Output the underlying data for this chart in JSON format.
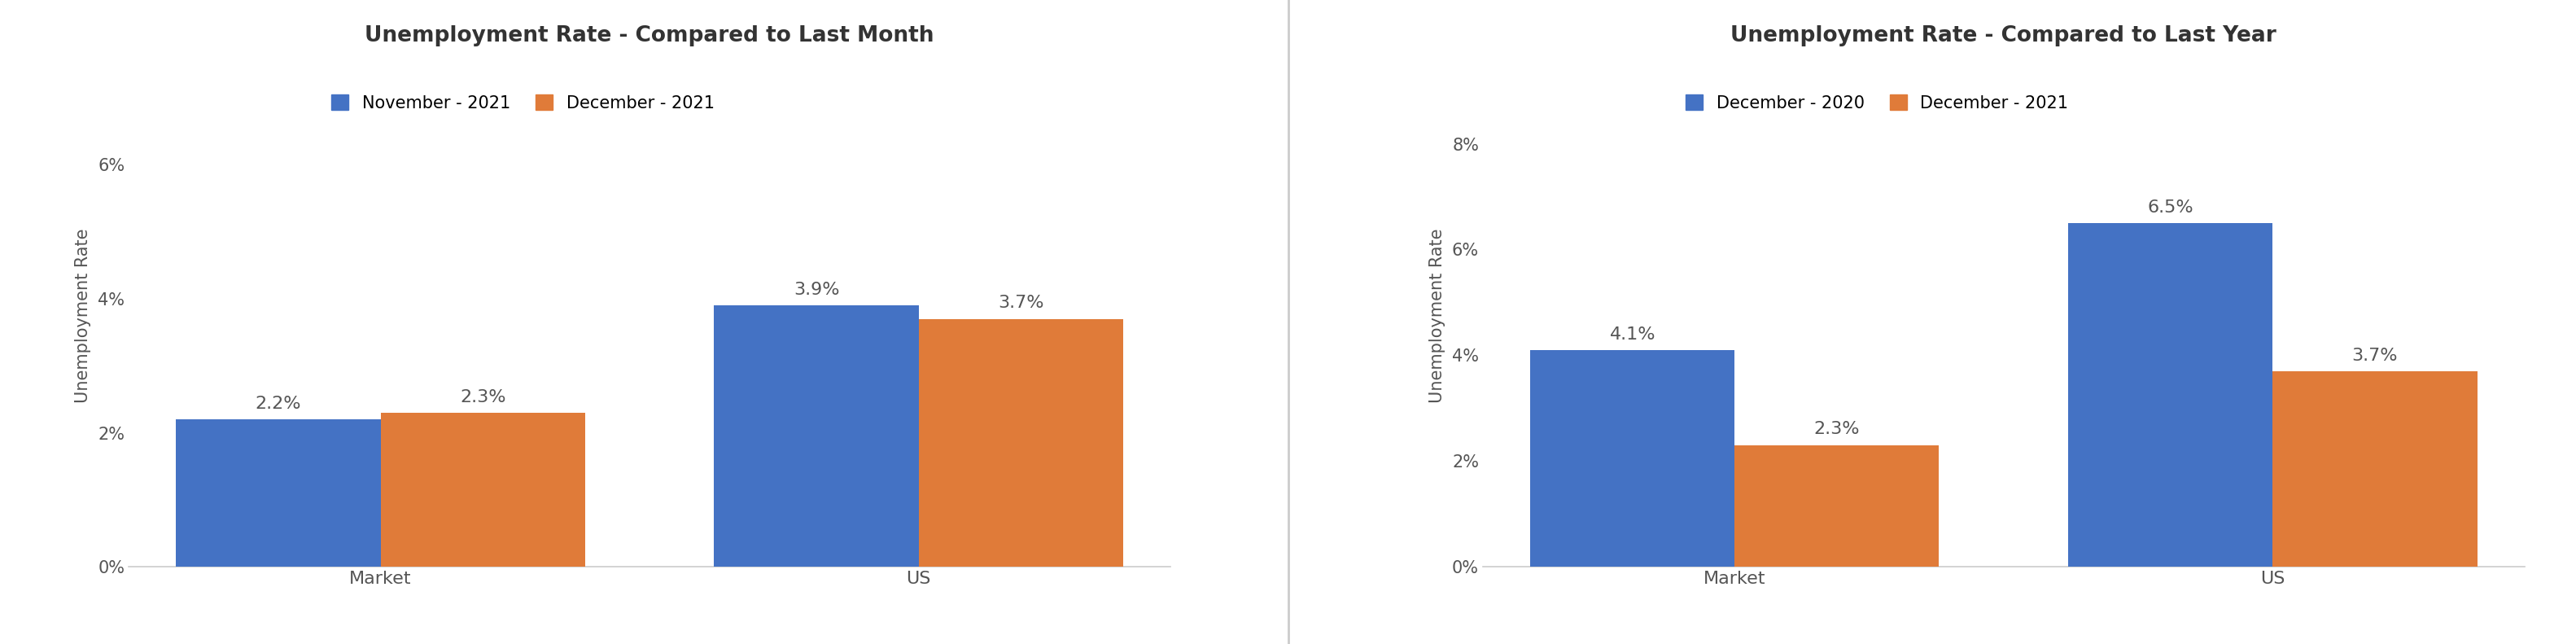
{
  "chart1": {
    "title": "Unemployment Rate - Compared to Last Month",
    "categories": [
      "Market",
      "US"
    ],
    "series": [
      {
        "label": "November - 2021",
        "values": [
          2.2,
          3.9
        ],
        "color": "#4472C4"
      },
      {
        "label": "December - 2021",
        "values": [
          2.3,
          3.7
        ],
        "color": "#E07B39"
      }
    ],
    "ylabel": "Unemployment Rate",
    "ylim": [
      0,
      7.5
    ],
    "yticks": [
      0,
      2,
      4,
      6
    ],
    "ytick_labels": [
      "0%",
      "2%",
      "4%",
      "6%"
    ]
  },
  "chart2": {
    "title": "Unemployment Rate - Compared to Last Year",
    "categories": [
      "Market",
      "US"
    ],
    "series": [
      {
        "label": "December - 2020",
        "values": [
          4.1,
          6.5
        ],
        "color": "#4472C4"
      },
      {
        "label": "December - 2021",
        "values": [
          2.3,
          3.7
        ],
        "color": "#E07B39"
      }
    ],
    "ylabel": "Unemployment Rate",
    "ylim": [
      0,
      9.5
    ],
    "yticks": [
      0,
      2,
      4,
      6,
      8
    ],
    "ytick_labels": [
      "0%",
      "2%",
      "4%",
      "6%",
      "8%"
    ]
  },
  "bg_color": "#FFFFFF",
  "bar_width": 0.38,
  "title_fontsize": 19,
  "legend_fontsize": 15,
  "ylabel_fontsize": 15,
  "tick_fontsize": 15,
  "annot_fontsize": 16,
  "separator_color": "#CCCCCC",
  "text_color": "#555555",
  "bar_annot_color": "#555555"
}
